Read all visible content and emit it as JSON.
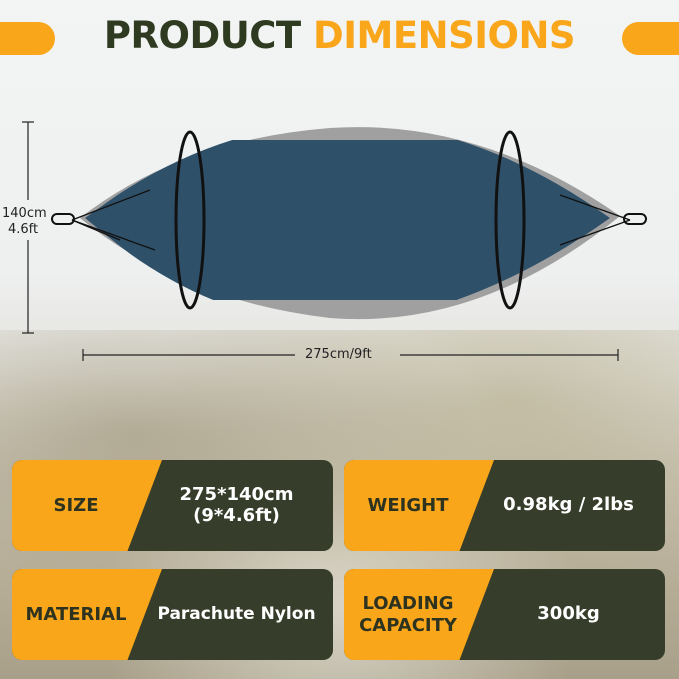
{
  "title": {
    "part1": "PRODUCT",
    "part2": "DIMENSIONS"
  },
  "dimensions": {
    "height_cm": "140cm",
    "height_ft": "4.6ft",
    "length": "275cm/9ft"
  },
  "specs": [
    {
      "label": "SIZE",
      "value_line1": "275*140cm",
      "value_line2": "(9*4.6ft)"
    },
    {
      "label": "WEIGHT",
      "value_line1": "0.98kg / 2lbs",
      "value_line2": ""
    },
    {
      "label": "MATERIAL",
      "value_line1": "Parachute Nylon",
      "value_line2": ""
    },
    {
      "label_line1": "LOADING",
      "label_line2": "CAPACITY",
      "value_line1": "300kg"
    }
  ],
  "colors": {
    "accent": "#f9a61a",
    "dark": "#363d2a",
    "title_dark": "#2f3b20",
    "hammock": "#2f5069",
    "mesh": "#9a9a9a"
  }
}
